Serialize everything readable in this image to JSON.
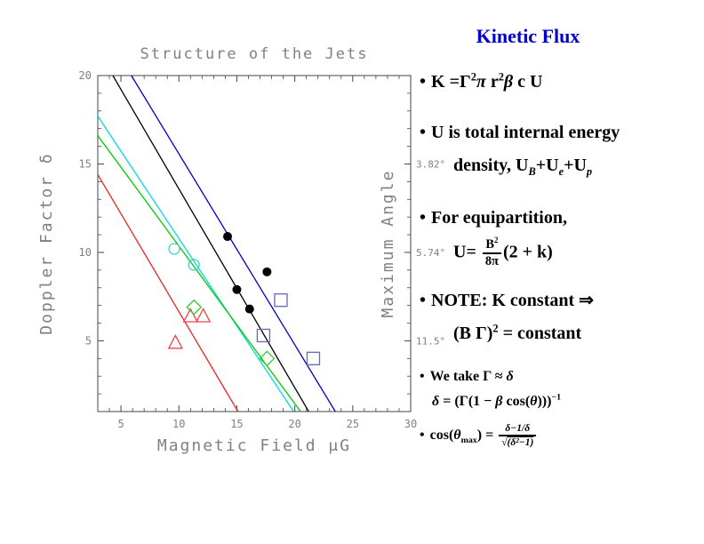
{
  "right_panel": {
    "title": "Kinetic Flux",
    "title_color": "#0000CC",
    "bullet_char": "•",
    "lines": [
      {
        "name": "kinetic-flux-equation",
        "bullet": true,
        "size": "lg",
        "ind": 0,
        "segs": [
          {
            "t": "K =Γ"
          },
          {
            "t": "2",
            "sup": true
          },
          {
            "t": "π",
            "i": true
          },
          {
            "t": " r"
          },
          {
            "t": "2",
            "sup": true
          },
          {
            "t": "β",
            "i": true
          },
          {
            "t": " c U"
          }
        ]
      },
      {
        "name": "internal-energy-line1",
        "bullet": true,
        "size": "lg",
        "ind": 0,
        "segs": [
          {
            "t": "U is total internal energy"
          }
        ]
      },
      {
        "name": "internal-energy-line2",
        "bullet": false,
        "size": "lg",
        "ind": 1,
        "segs": [
          {
            "t": "density, U"
          },
          {
            "t": "B",
            "sub": true,
            "i": true
          },
          {
            "t": "+U"
          },
          {
            "t": "e",
            "sub": true,
            "i": true
          },
          {
            "t": "+U"
          },
          {
            "t": "p",
            "sub": true,
            "i": true
          }
        ]
      },
      {
        "name": "equipartition-line1",
        "bullet": true,
        "size": "lg",
        "ind": 0,
        "segs": [
          {
            "t": "For equipartition,"
          }
        ]
      },
      {
        "name": "equipartition-line2",
        "bullet": false,
        "size": "lg",
        "ind": 1,
        "segs": [
          {
            "t": "U= "
          },
          {
            "frac": {
              "n": [
                {
                  "t": "B"
                },
                {
                  "t": "2",
                  "sup": true
                }
              ],
              "d": [
                {
                  "t": "8π"
                }
              ]
            }
          },
          {
            "t": "(2 + k)"
          }
        ]
      },
      {
        "name": "note-line1",
        "bullet": true,
        "size": "lg",
        "ind": 0,
        "segs": [
          {
            "t": "NOTE: K constant ⇒"
          }
        ]
      },
      {
        "name": "note-line2",
        "bullet": false,
        "size": "lg",
        "ind": 1,
        "segs": [
          {
            "t": "(B Γ)"
          },
          {
            "t": "2",
            "sup": true
          },
          {
            "t": " = constant"
          }
        ]
      },
      {
        "name": "gamma-delta-line",
        "bullet": true,
        "size": "sm",
        "ind": 0,
        "segs": [
          {
            "t": "We take Γ ≈ "
          },
          {
            "t": "δ",
            "i": true
          }
        ]
      },
      {
        "name": "doppler-definition",
        "bullet": false,
        "size": "sm",
        "ind": 2,
        "segs": [
          {
            "t": "δ",
            "i": true
          },
          {
            "t": " = (Γ(1 − "
          },
          {
            "t": "β",
            "i": true
          },
          {
            "t": " cos("
          },
          {
            "t": "θ",
            "i": true
          },
          {
            "t": ")))"
          },
          {
            "t": "−1",
            "sup": true
          }
        ]
      },
      {
        "name": "cos-theta-max",
        "bullet": true,
        "size": "sm",
        "ind": 0,
        "segs": [
          {
            "t": "cos("
          },
          {
            "t": "θ",
            "i": true
          },
          {
            "t": "max",
            "sub": true
          },
          {
            "t": ") = "
          },
          {
            "frac": {
              "n": [
                {
                  "t": "δ−1/δ",
                  "i": true
                }
              ],
              "d": [
                {
                  "t": "√"
                },
                {
                  "t": "(δ²−1)",
                  "i": true,
                  "ov": true
                }
              ]
            }
          }
        ]
      }
    ]
  },
  "chart_data": {
    "type": "scatter",
    "title": "Structure of the Jets",
    "xlabel": "Magnetic Field μG",
    "ylabel": "Doppler Factor δ",
    "y2label": "Maximum Angle",
    "xlim": [
      3,
      30
    ],
    "ylim": [
      1,
      20
    ],
    "xticks": [
      5,
      10,
      15,
      20,
      25,
      30
    ],
    "yticks": [
      5,
      10,
      15,
      20
    ],
    "y2ticks": [
      {
        "y": 15,
        "label": "3.82°"
      },
      {
        "y": 10,
        "label": "5.74°"
      },
      {
        "y": 5,
        "label": "11.5°"
      }
    ],
    "grid": false,
    "frame_color": "#444444",
    "text_color": "#808080",
    "lines": [
      {
        "name": "line-blue",
        "color": "#0000CC",
        "x1": 5.9,
        "y1": 20.0,
        "x2": 23.5,
        "y2": 1.0
      },
      {
        "name": "line-black",
        "color": "#000000",
        "x1": 4.3,
        "y1": 20.0,
        "x2": 21.2,
        "y2": 1.0
      },
      {
        "name": "line-cyan",
        "color": "#00DDDD",
        "x1": 3.0,
        "y1": 17.7,
        "x2": 19.9,
        "y2": 1.0
      },
      {
        "name": "line-green",
        "color": "#00CC00",
        "x1": 3.0,
        "y1": 16.6,
        "x2": 20.5,
        "y2": 1.0
      },
      {
        "name": "line-red",
        "color": "#EE2222",
        "x1": 3.0,
        "y1": 14.4,
        "x2": 15.1,
        "y2": 1.0
      }
    ],
    "series": [
      {
        "name": "filled-circles",
        "marker": "circle",
        "filled": true,
        "color": "#000000",
        "size": 5,
        "points": [
          [
            14.2,
            10.9
          ],
          [
            17.6,
            8.9
          ],
          [
            15.0,
            7.9
          ],
          [
            16.1,
            6.8
          ]
        ]
      },
      {
        "name": "open-circles",
        "marker": "circle",
        "filled": false,
        "color": "#44CCCC",
        "size": 6,
        "points": [
          [
            9.6,
            10.2
          ],
          [
            11.3,
            9.3
          ]
        ]
      },
      {
        "name": "open-triangles",
        "marker": "triangle",
        "filled": false,
        "color": "#EE4444",
        "size": 8,
        "points": [
          [
            11.0,
            6.4
          ],
          [
            12.1,
            6.4
          ],
          [
            9.7,
            4.9
          ]
        ]
      },
      {
        "name": "open-diamonds",
        "marker": "diamond",
        "filled": false,
        "color": "#33CC33",
        "size": 8,
        "points": [
          [
            11.3,
            6.9
          ],
          [
            17.6,
            4.0
          ]
        ]
      },
      {
        "name": "open-squares",
        "marker": "square",
        "filled": false,
        "color": "#6666BB",
        "size": 7,
        "points": [
          [
            18.8,
            7.3
          ],
          [
            17.3,
            5.3
          ],
          [
            21.6,
            4.0
          ]
        ]
      }
    ]
  }
}
